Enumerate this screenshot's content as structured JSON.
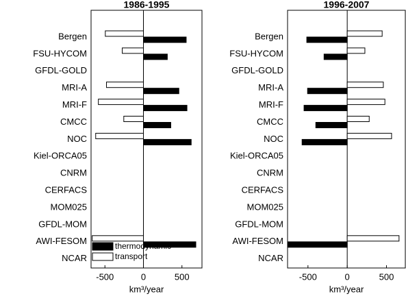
{
  "chart_data": [
    {
      "type": "bar",
      "orientation": "horizontal",
      "title": "1986-1995",
      "categories": [
        "Bergen",
        "FSU-HYCOM",
        "GFDL-GOLD",
        "MRI-A",
        "MRI-F",
        "CMCC",
        "NOC",
        "Kiel-ORCA05",
        "CNRM",
        "CERFACS",
        "MOM025",
        "GFDL-MOM",
        "AWI-FESOM",
        "NCAR"
      ],
      "series": [
        {
          "name": "thermodynamic",
          "color": "#000000",
          "values": [
            555,
            310,
            null,
            460,
            565,
            355,
            620,
            null,
            null,
            null,
            null,
            null,
            680,
            null
          ]
        },
        {
          "name": "transport",
          "color": "#ffffff",
          "values": [
            -495,
            -275,
            null,
            -480,
            -585,
            -255,
            -620,
            null,
            null,
            null,
            null,
            null,
            -665,
            null
          ]
        }
      ],
      "xlim": [
        -680,
        760
      ],
      "xticks": [
        -500,
        0,
        500
      ],
      "xlabel": "km³/year",
      "legend": "lower left"
    },
    {
      "type": "bar",
      "orientation": "horizontal",
      "title": "1996-2007",
      "categories": [
        "Bergen",
        "FSU-HYCOM",
        "GFDL-GOLD",
        "MRI-A",
        "MRI-F",
        "CMCC",
        "NOC",
        "Kiel-ORCA05",
        "CNRM",
        "CERFACS",
        "MOM025",
        "GFDL-MOM",
        "AWI-FESOM",
        "NCAR"
      ],
      "series": [
        {
          "name": "thermodynamic",
          "color": "#000000",
          "values": [
            -515,
            -295,
            null,
            -505,
            -550,
            -400,
            -575,
            null,
            null,
            null,
            null,
            null,
            -755,
            null
          ]
        },
        {
          "name": "transport",
          "color": "#ffffff",
          "values": [
            445,
            225,
            null,
            460,
            480,
            280,
            565,
            null,
            null,
            null,
            null,
            null,
            660,
            null
          ]
        }
      ],
      "xlim": [
        -760,
        740
      ],
      "xticks": [
        -500,
        0,
        500
      ],
      "xlabel": "km³/year"
    }
  ]
}
